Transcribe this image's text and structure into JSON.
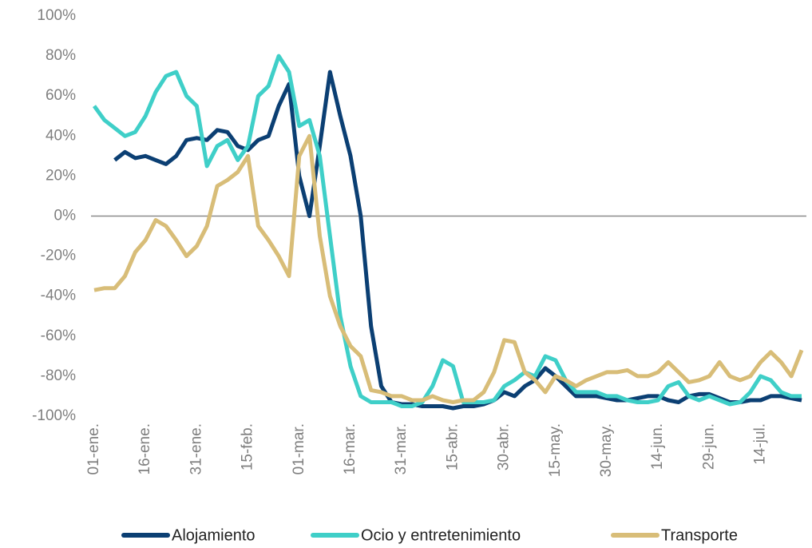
{
  "chart_data": {
    "type": "line",
    "categories": [
      "01-ene.",
      null,
      null,
      null,
      null,
      "16-ene.",
      null,
      null,
      null,
      null,
      "31-ene.",
      null,
      null,
      null,
      null,
      "15-feb.",
      null,
      null,
      null,
      null,
      "01-mar.",
      null,
      null,
      null,
      null,
      "16-mar.",
      null,
      null,
      null,
      null,
      "31-mar.",
      null,
      null,
      null,
      null,
      "15-abr.",
      null,
      null,
      null,
      null,
      "30-abr.",
      null,
      null,
      null,
      null,
      "15-may.",
      null,
      null,
      null,
      null,
      "30-may.",
      null,
      null,
      null,
      null,
      "14-jun.",
      null,
      null,
      null,
      null,
      "29-jun.",
      null,
      null,
      null,
      null,
      "14-jul.",
      null,
      null,
      null,
      null
    ],
    "series": [
      {
        "name": "Alojamiento",
        "color": "#0b3f73",
        "values": [
          null,
          null,
          28,
          32,
          29,
          30,
          28,
          26,
          30,
          38,
          39,
          38,
          43,
          42,
          35,
          33,
          38,
          40,
          55,
          66,
          20,
          0,
          35,
          72,
          50,
          30,
          0,
          -55,
          -85,
          -93,
          -94,
          -94,
          -95,
          -95,
          -95,
          -96,
          -95,
          -95,
          -94,
          -92,
          -88,
          -90,
          -85,
          -82,
          -76,
          -80,
          -85,
          -90,
          -90,
          -90,
          -91,
          -92,
          -92,
          -91,
          -90,
          -90,
          -92,
          -93,
          -90,
          -89,
          -89,
          -91,
          -93,
          -93,
          -92,
          -92,
          -90,
          -90,
          -91,
          -92
        ]
      },
      {
        "name": "Ocio y entretenimiento",
        "color": "#3fcfc8",
        "values": [
          55,
          48,
          44,
          40,
          42,
          50,
          62,
          70,
          72,
          60,
          55,
          25,
          35,
          38,
          28,
          35,
          60,
          65,
          80,
          72,
          45,
          48,
          30,
          -10,
          -50,
          -75,
          -90,
          -93,
          -93,
          -93,
          -95,
          -95,
          -93,
          -85,
          -72,
          -75,
          -93,
          -93,
          -93,
          -92,
          -85,
          -82,
          -78,
          -80,
          -70,
          -72,
          -82,
          -88,
          -88,
          -88,
          -90,
          -90,
          -92,
          -93,
          -93,
          -92,
          -85,
          -83,
          -90,
          -92,
          -90,
          -92,
          -94,
          -93,
          -88,
          -80,
          -82,
          -88,
          -90,
          -90
        ]
      },
      {
        "name": "Transporte",
        "color": "#d8bd78",
        "values": [
          -37,
          -36,
          -36,
          -30,
          -18,
          -12,
          -2,
          -5,
          -12,
          -20,
          -15,
          -5,
          15,
          18,
          22,
          30,
          -5,
          -12,
          -20,
          -30,
          30,
          40,
          -10,
          -40,
          -55,
          -65,
          -70,
          -87,
          -88,
          -90,
          -90,
          -92,
          -92,
          -90,
          -92,
          -93,
          -92,
          -92,
          -88,
          -78,
          -62,
          -63,
          -78,
          -82,
          -88,
          -80,
          -82,
          -85,
          -82,
          -80,
          -78,
          -78,
          -77,
          -80,
          -80,
          -78,
          -73,
          -78,
          -83,
          -82,
          -80,
          -73,
          -80,
          -82,
          -80,
          -73,
          -68,
          -73,
          -80,
          -67
        ]
      }
    ],
    "ylim": [
      -100,
      100
    ],
    "yticks": [
      {
        "value": -100,
        "label": "-100%"
      },
      {
        "value": -80,
        "label": "-80%"
      },
      {
        "value": -60,
        "label": "-60%"
      },
      {
        "value": -40,
        "label": "-40%"
      },
      {
        "value": -20,
        "label": "-20%"
      },
      {
        "value": 0,
        "label": "0%"
      },
      {
        "value": 20,
        "label": "20%"
      },
      {
        "value": 40,
        "label": "40%"
      },
      {
        "value": 60,
        "label": "60%"
      },
      {
        "value": 80,
        "label": "80%"
      },
      {
        "value": 100,
        "label": "100%"
      }
    ],
    "grid": false,
    "legend": "bottom"
  }
}
